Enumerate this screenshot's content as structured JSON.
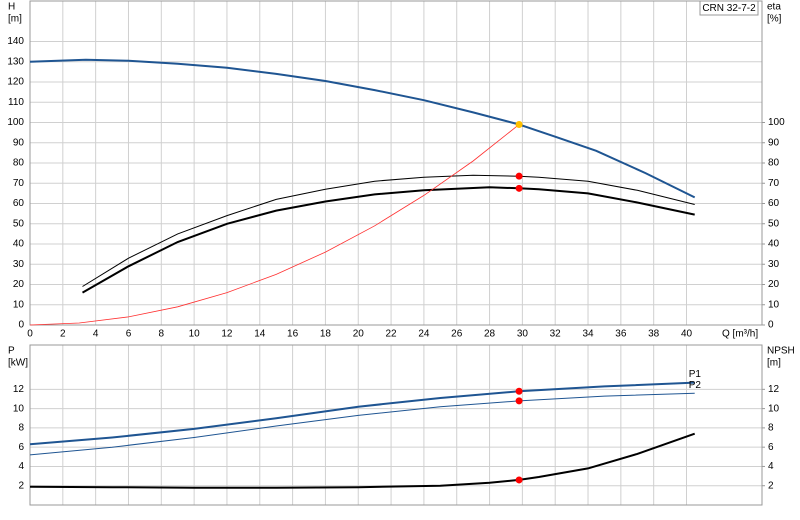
{
  "chart_data": [
    {
      "type": "line",
      "annotation": "CRN 32-7-2",
      "ylabel": "H",
      "yunit": "[m]",
      "y2label": "eta",
      "y2unit": "[%]",
      "xlabel": "Q [m³/h]",
      "xlim": [
        0,
        44.6
      ],
      "xticks": [
        0,
        2,
        4,
        6,
        8,
        10,
        12,
        14,
        16,
        18,
        20,
        22,
        24,
        26,
        28,
        30,
        32,
        34,
        36,
        38,
        40
      ],
      "ylim": [
        0,
        160
      ],
      "yticks": [
        0,
        10,
        20,
        30,
        40,
        50,
        60,
        70,
        80,
        90,
        100,
        110,
        120,
        130,
        140
      ],
      "y2lim": [
        0,
        160
      ],
      "y2ticks": [
        0,
        10,
        20,
        30,
        40,
        50,
        60,
        70,
        80,
        90,
        100
      ],
      "grid": true,
      "series": [
        {
          "style": "line",
          "color": "#1f5592",
          "width": 2,
          "x": [
            0,
            3.4,
            6,
            9,
            12,
            15,
            18,
            21,
            24,
            27,
            29.8,
            32,
            34.5,
            37.5,
            40.5
          ],
          "values": [
            130,
            131,
            130.5,
            129,
            127,
            124,
            120.5,
            116,
            111,
            105,
            99,
            93,
            86,
            75,
            63
          ]
        },
        {
          "style": "line",
          "color": "#000000",
          "width": 1,
          "axis": "y2",
          "x": [
            3.2,
            6,
            9,
            12,
            15,
            18,
            21,
            24,
            27,
            29.8,
            31,
            34,
            37,
            40.5
          ],
          "values": [
            19,
            33,
            45,
            54,
            62,
            67,
            71,
            73,
            74,
            73.5,
            73,
            71,
            66.5,
            59.5
          ]
        },
        {
          "style": "line",
          "color": "#000000",
          "width": 2,
          "axis": "y2",
          "x": [
            3.2,
            6,
            9,
            12,
            15,
            18,
            21,
            24,
            28,
            29.8,
            31,
            34,
            37,
            40.5
          ],
          "values": [
            16,
            29,
            41,
            50,
            56.5,
            61,
            64.5,
            66.5,
            68,
            67.5,
            67,
            65,
            60.5,
            54.5
          ]
        },
        {
          "style": "line",
          "color": "#ff3030",
          "width": 0.8,
          "x": [
            0,
            3,
            6,
            9,
            12,
            15,
            18,
            21,
            24,
            27,
            29.8
          ],
          "values": [
            0,
            1,
            4,
            9,
            16,
            25,
            36,
            49,
            64,
            81,
            99
          ]
        },
        {
          "style": "points",
          "color": "#ffc000",
          "x": [
            29.8
          ],
          "values": [
            99
          ]
        },
        {
          "style": "points",
          "color": "#ff0000",
          "axis": "y2",
          "x": [
            29.8,
            29.8
          ],
          "values": [
            73.5,
            67.5
          ]
        }
      ]
    },
    {
      "type": "line",
      "ylabel": "P",
      "yunit": "[kW]",
      "y2label": "NPSH",
      "y2unit": "[m]",
      "xlim": [
        0,
        44.6
      ],
      "ylim": [
        0,
        16.6
      ],
      "yticks": [
        2,
        4,
        6,
        8,
        10,
        12
      ],
      "y2lim": [
        0,
        16.6
      ],
      "y2ticks": [
        2,
        4,
        6,
        8,
        10,
        12
      ],
      "grid": true,
      "series": [
        {
          "style": "line",
          "name": "P1",
          "color": "#1f5592",
          "width": 2,
          "x": [
            0,
            5,
            10,
            15,
            20,
            25,
            29.8,
            35,
            40.5
          ],
          "values": [
            6.3,
            7,
            7.9,
            9,
            10.2,
            11.1,
            11.8,
            12.3,
            12.7
          ]
        },
        {
          "style": "line",
          "name": "P2",
          "color": "#1f5592",
          "width": 1,
          "x": [
            0,
            5,
            10,
            15,
            20,
            25,
            29.8,
            35,
            40.5
          ],
          "values": [
            5.2,
            6,
            7,
            8.2,
            9.3,
            10.2,
            10.8,
            11.3,
            11.6
          ]
        },
        {
          "style": "line",
          "color": "#000000",
          "width": 2,
          "axis": "y2",
          "x": [
            0,
            5,
            10,
            15,
            20,
            25,
            28,
            29.8,
            31,
            34,
            37,
            40.5
          ],
          "values": [
            1.9,
            1.85,
            1.8,
            1.8,
            1.85,
            2,
            2.3,
            2.6,
            2.9,
            3.8,
            5.3,
            7.4
          ]
        },
        {
          "style": "points",
          "color": "#ff0000",
          "x": [
            29.8,
            29.8
          ],
          "values": [
            11.8,
            10.8
          ]
        },
        {
          "style": "points",
          "color": "#ff0000",
          "axis": "y2",
          "x": [
            29.8
          ],
          "values": [
            2.6
          ]
        }
      ]
    }
  ]
}
